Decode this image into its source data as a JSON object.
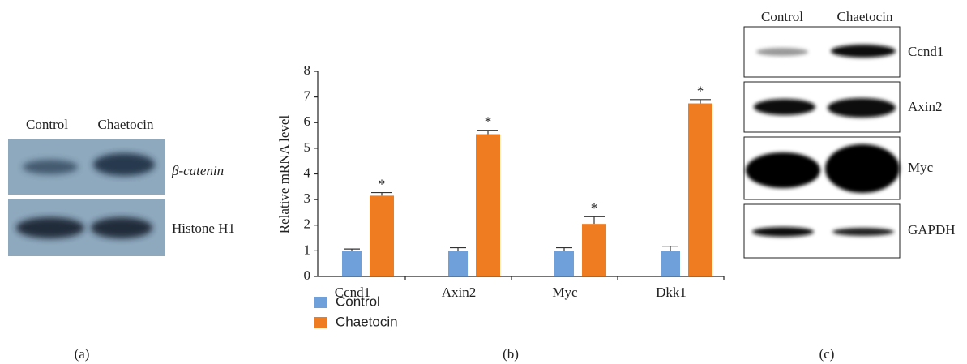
{
  "panel_a": {
    "lanes": [
      "Control",
      "Chaetocin"
    ],
    "bands": [
      "β-catenin",
      "Histone H1"
    ],
    "caption": "(a)"
  },
  "chart_data": {
    "type": "bar",
    "y_label": "Relative mRNA level",
    "caption": "(b)",
    "categories": [
      "Ccnd1",
      "Axin2",
      "Myc",
      "Dkk1"
    ],
    "series": [
      {
        "name": "Control",
        "color": "#6fa0da",
        "values": [
          1,
          1,
          1,
          1
        ],
        "errors": [
          0.07,
          0.12,
          0.12,
          0.18
        ]
      },
      {
        "name": "Chaetocin",
        "color": "#f07c22",
        "values": [
          3.15,
          5.55,
          2.05,
          6.75
        ],
        "errors": [
          0.12,
          0.15,
          0.28,
          0.15
        ],
        "annotations": [
          "*",
          "*",
          "*",
          "*"
        ]
      }
    ],
    "ylim": [
      0,
      8
    ],
    "yticks": [
      0,
      1,
      2,
      3,
      4,
      5,
      6,
      7,
      8
    ]
  },
  "panel_c": {
    "lanes": [
      "Control",
      "Chaetocin"
    ],
    "bands": [
      "Ccnd1",
      "Axin2",
      "Myc",
      "GAPDH"
    ],
    "caption": "(c)"
  }
}
